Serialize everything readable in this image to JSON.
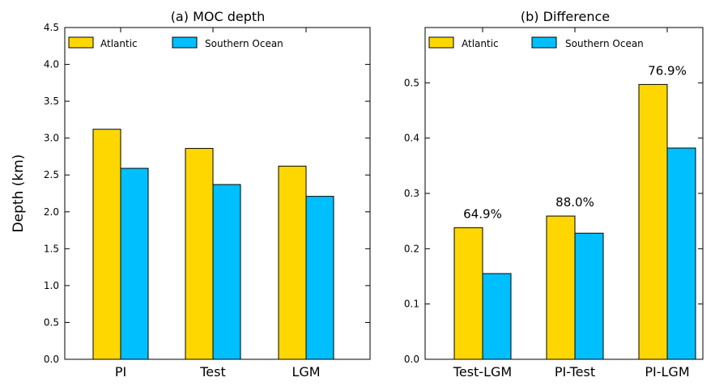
{
  "chart_data": [
    {
      "type": "bar",
      "title": "(a) MOC depth",
      "ylabel": "Depth (km)",
      "xlabel": "",
      "categories": [
        "PI",
        "Test",
        "LGM"
      ],
      "series": [
        {
          "name": "Atlantic",
          "values": [
            3.12,
            2.86,
            2.62
          ],
          "color": "#FFD700"
        },
        {
          "name": "Southern Ocean",
          "values": [
            2.59,
            2.37,
            2.21
          ],
          "color": "#00BFFF"
        }
      ],
      "ylim": [
        0,
        4.5
      ],
      "yticks": [
        "0.0",
        "0.5",
        "1.0",
        "1.5",
        "2.0",
        "2.5",
        "3.0",
        "3.5",
        "4.0",
        "4.5"
      ],
      "legend": "top-left",
      "grid": false
    },
    {
      "type": "bar",
      "title": "(b) Difference",
      "ylabel": "",
      "xlabel": "",
      "categories": [
        "Test-LGM",
        "PI-Test",
        "PI-LGM"
      ],
      "series": [
        {
          "name": "Atlantic",
          "values": [
            0.238,
            0.259,
            0.497
          ],
          "color": "#FFD700"
        },
        {
          "name": "Southern Ocean",
          "values": [
            0.155,
            0.228,
            0.382
          ],
          "color": "#00BFFF"
        }
      ],
      "annotations": [
        "64.9%",
        "88.0%",
        "76.9%"
      ],
      "ylim": [
        0,
        0.6
      ],
      "yticks": [
        "0.0",
        "0.1",
        "0.2",
        "0.3",
        "0.4",
        "0.5"
      ],
      "legend": "top-left",
      "grid": false
    }
  ]
}
